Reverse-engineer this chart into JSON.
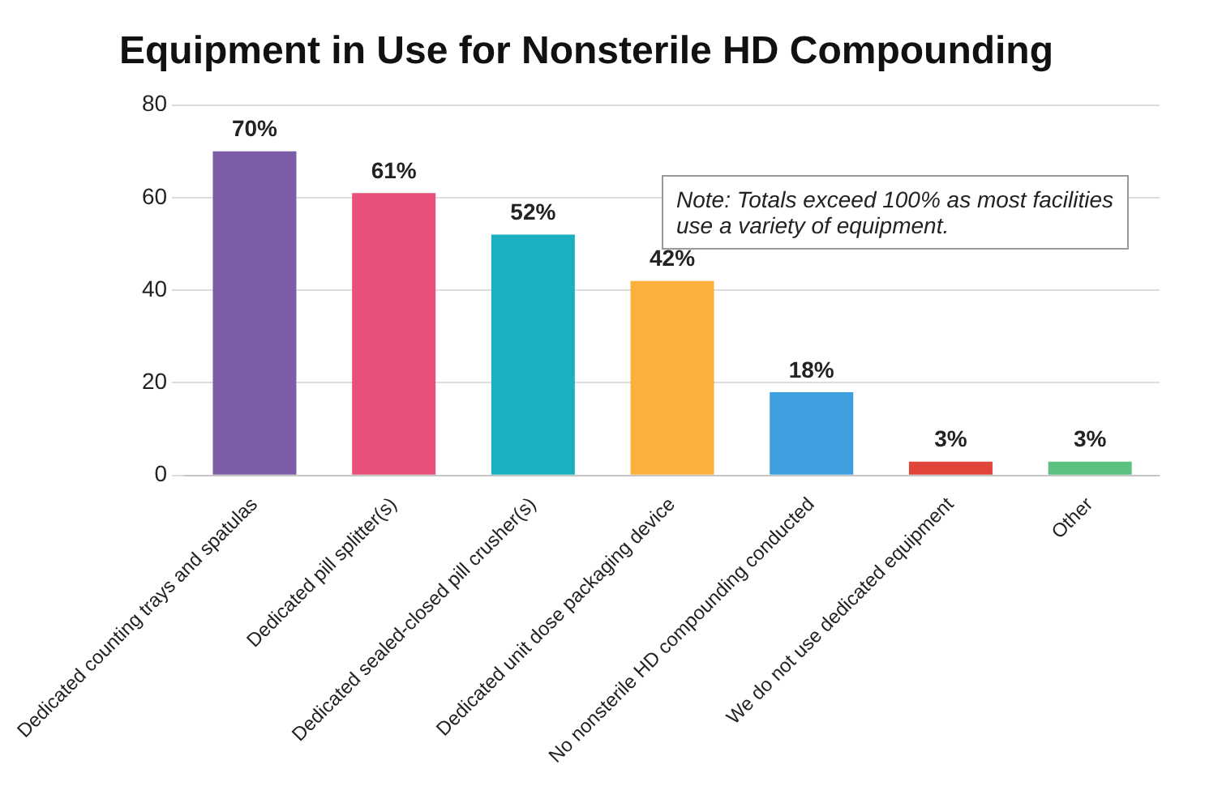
{
  "chart_data": {
    "type": "bar",
    "title": "Equipment in Use for Nonsterile HD Compounding",
    "categories": [
      "Dedicated counting trays and spatulas",
      "Dedicated pill splitter(s)",
      "Dedicated sealed-closed pill crusher(s)",
      "Dedicated unit dose packaging device",
      "No nonsterile HD compounding conducted",
      "We do not use dedicated equipment",
      "Other"
    ],
    "values": [
      70,
      61,
      52,
      42,
      18,
      3,
      3
    ],
    "value_labels": [
      "70%",
      "61%",
      "52%",
      "42%",
      "18%",
      "3%",
      "3%"
    ],
    "colors": [
      "#7b5ea7",
      "#e8507a",
      "#1ab0c0",
      "#fbb03b",
      "#3fa0e0",
      "#e0443a",
      "#5cc080"
    ],
    "ylim": [
      0,
      80
    ],
    "yticks": [
      0,
      20,
      40,
      60,
      80
    ],
    "grid": "y",
    "annotations": [
      "Note: Totals exceed 100% as most facilities use a variety of equipment."
    ]
  }
}
